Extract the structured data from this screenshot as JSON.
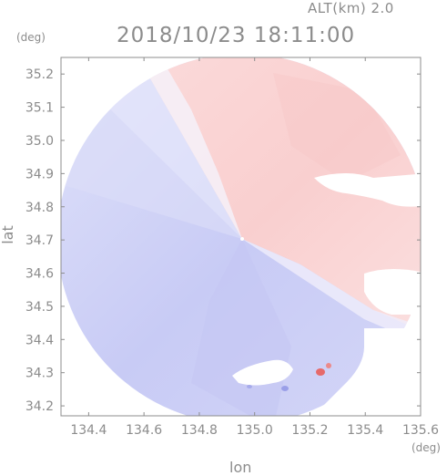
{
  "header": {
    "altitude_label": "ALT(km) 2.0",
    "timestamp": "2018/10/23 18:11:00"
  },
  "axes": {
    "y_unit": "(deg)",
    "x_unit": "(deg)",
    "y_label": "lat",
    "x_label": "lon",
    "y_ticks": [
      "35.2",
      "35.1",
      "35.0",
      "34.9",
      "34.8",
      "34.7",
      "34.6",
      "34.5",
      "34.4",
      "34.3",
      "34.2"
    ],
    "x_ticks": [
      "134.4",
      "134.6",
      "134.8",
      "135.0",
      "135.2",
      "135.4",
      "135.6"
    ]
  },
  "map": {
    "type": "doppler-velocity-radar-scan",
    "colors": {
      "approaching": "#c9ccf5",
      "receding": "#fbd2d2",
      "neutral": "#f2f2fb",
      "frame": "#8c8c8c"
    },
    "x_range": [
      134.3,
      135.6
    ],
    "y_range": [
      34.17,
      35.25
    ]
  }
}
